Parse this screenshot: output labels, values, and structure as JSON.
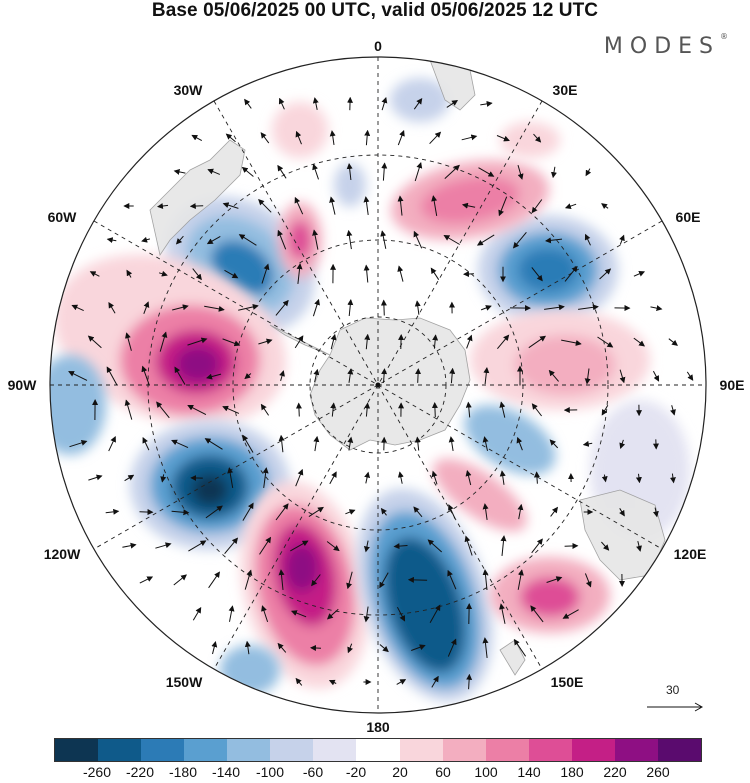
{
  "header": {
    "title": "Base 05/06/2025 00 UTC, valid 05/06/2025 12 UTC",
    "brand": "MODES",
    "brand_mark": "®"
  },
  "map": {
    "projection": "south-polar-stereographic",
    "longitude_labels": {
      "lon_0": "0",
      "lon_30e": "30E",
      "lon_60e": "60E",
      "lon_90e": "90E",
      "lon_120e": "120E",
      "lon_150e": "150E",
      "lon_180": "180",
      "lon_150w": "150W",
      "lon_120w": "120W",
      "lon_90w": "90W",
      "lon_60w": "60W",
      "lon_30w": "30W"
    },
    "vector_reference": "30"
  },
  "colorbar": {
    "colors": [
      "#0d3552",
      "#0f5a8a",
      "#2c7bb6",
      "#5a9fd0",
      "#93bde0",
      "#c6d2ea",
      "#e3e3f2",
      "#ffffff",
      "#f9d6dc",
      "#f3aec0",
      "#ec7fa6",
      "#de4e96",
      "#c41f86",
      "#8e0f83",
      "#5a0b6e"
    ],
    "ticks": {
      "t0": "-260",
      "t1": "-220",
      "t2": "-180",
      "t3": "-140",
      "t4": "-100",
      "t5": "-60",
      "t6": "-20",
      "t7": "20",
      "t8": "60",
      "t9": "100",
      "t10": "140",
      "t11": "180",
      "t12": "220",
      "t13": "260"
    }
  },
  "anomaly_centers": [
    {
      "name": "blob-south-atlantic",
      "value": -160
    },
    {
      "name": "blob-east-indian",
      "value": -200
    },
    {
      "name": "blob-bellingshausen",
      "value": 260
    },
    {
      "name": "blob-amundsen-low",
      "value": -260
    },
    {
      "name": "blob-ross-high",
      "value": 240
    },
    {
      "name": "blob-ross-low",
      "value": -240
    },
    {
      "name": "blob-indian-high",
      "value": 140
    },
    {
      "name": "blob-se-australia",
      "value": 180
    },
    {
      "name": "blob-south-africa-high",
      "value": 130
    }
  ]
}
